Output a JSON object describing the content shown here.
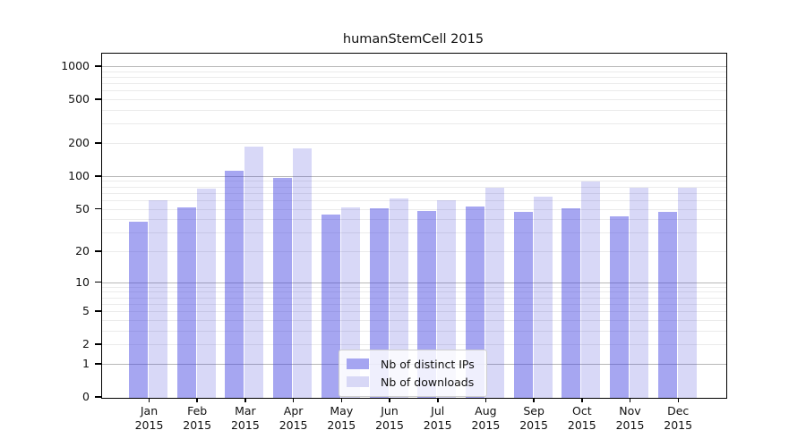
{
  "chart_data": {
    "type": "bar",
    "title": "humanStemCell 2015",
    "scale": "log1p",
    "grid": "on",
    "legend_position": "bottom-center-inside",
    "categories": [
      "Jan",
      "Feb",
      "Mar",
      "Apr",
      "May",
      "Jun",
      "Jul",
      "Aug",
      "Sep",
      "Oct",
      "Nov",
      "Dec"
    ],
    "x_year": "2015",
    "series": [
      {
        "name": "Nb of distinct IPs",
        "color": "rgba(60,60,225,0.46)",
        "swatch_color": "#a5a5f1",
        "values": [
          39,
          52,
          113,
          98,
          45,
          51,
          49,
          53,
          48,
          51,
          43,
          48
        ]
      },
      {
        "name": "Nb of downloads",
        "color": "rgba(50,50,210,0.19)",
        "swatch_color": "#d8d8f6",
        "values": [
          61,
          78,
          189,
          181,
          52,
          64,
          61,
          80,
          66,
          90,
          80,
          80
        ]
      }
    ],
    "y_ticks": [
      0,
      1,
      2,
      5,
      10,
      20,
      50,
      100,
      200,
      500,
      1000
    ],
    "ylim": [
      0,
      1300
    ],
    "gridlines": {
      "minor": [
        2,
        3,
        4,
        5,
        6,
        7,
        8,
        9,
        20,
        30,
        40,
        50,
        60,
        70,
        80,
        90,
        200,
        300,
        400,
        500,
        600,
        700,
        800,
        900
      ],
      "major": [
        1,
        10,
        100,
        1000
      ],
      "minor_color": "#ebebeb",
      "major_color": "#b8b8b8"
    }
  }
}
